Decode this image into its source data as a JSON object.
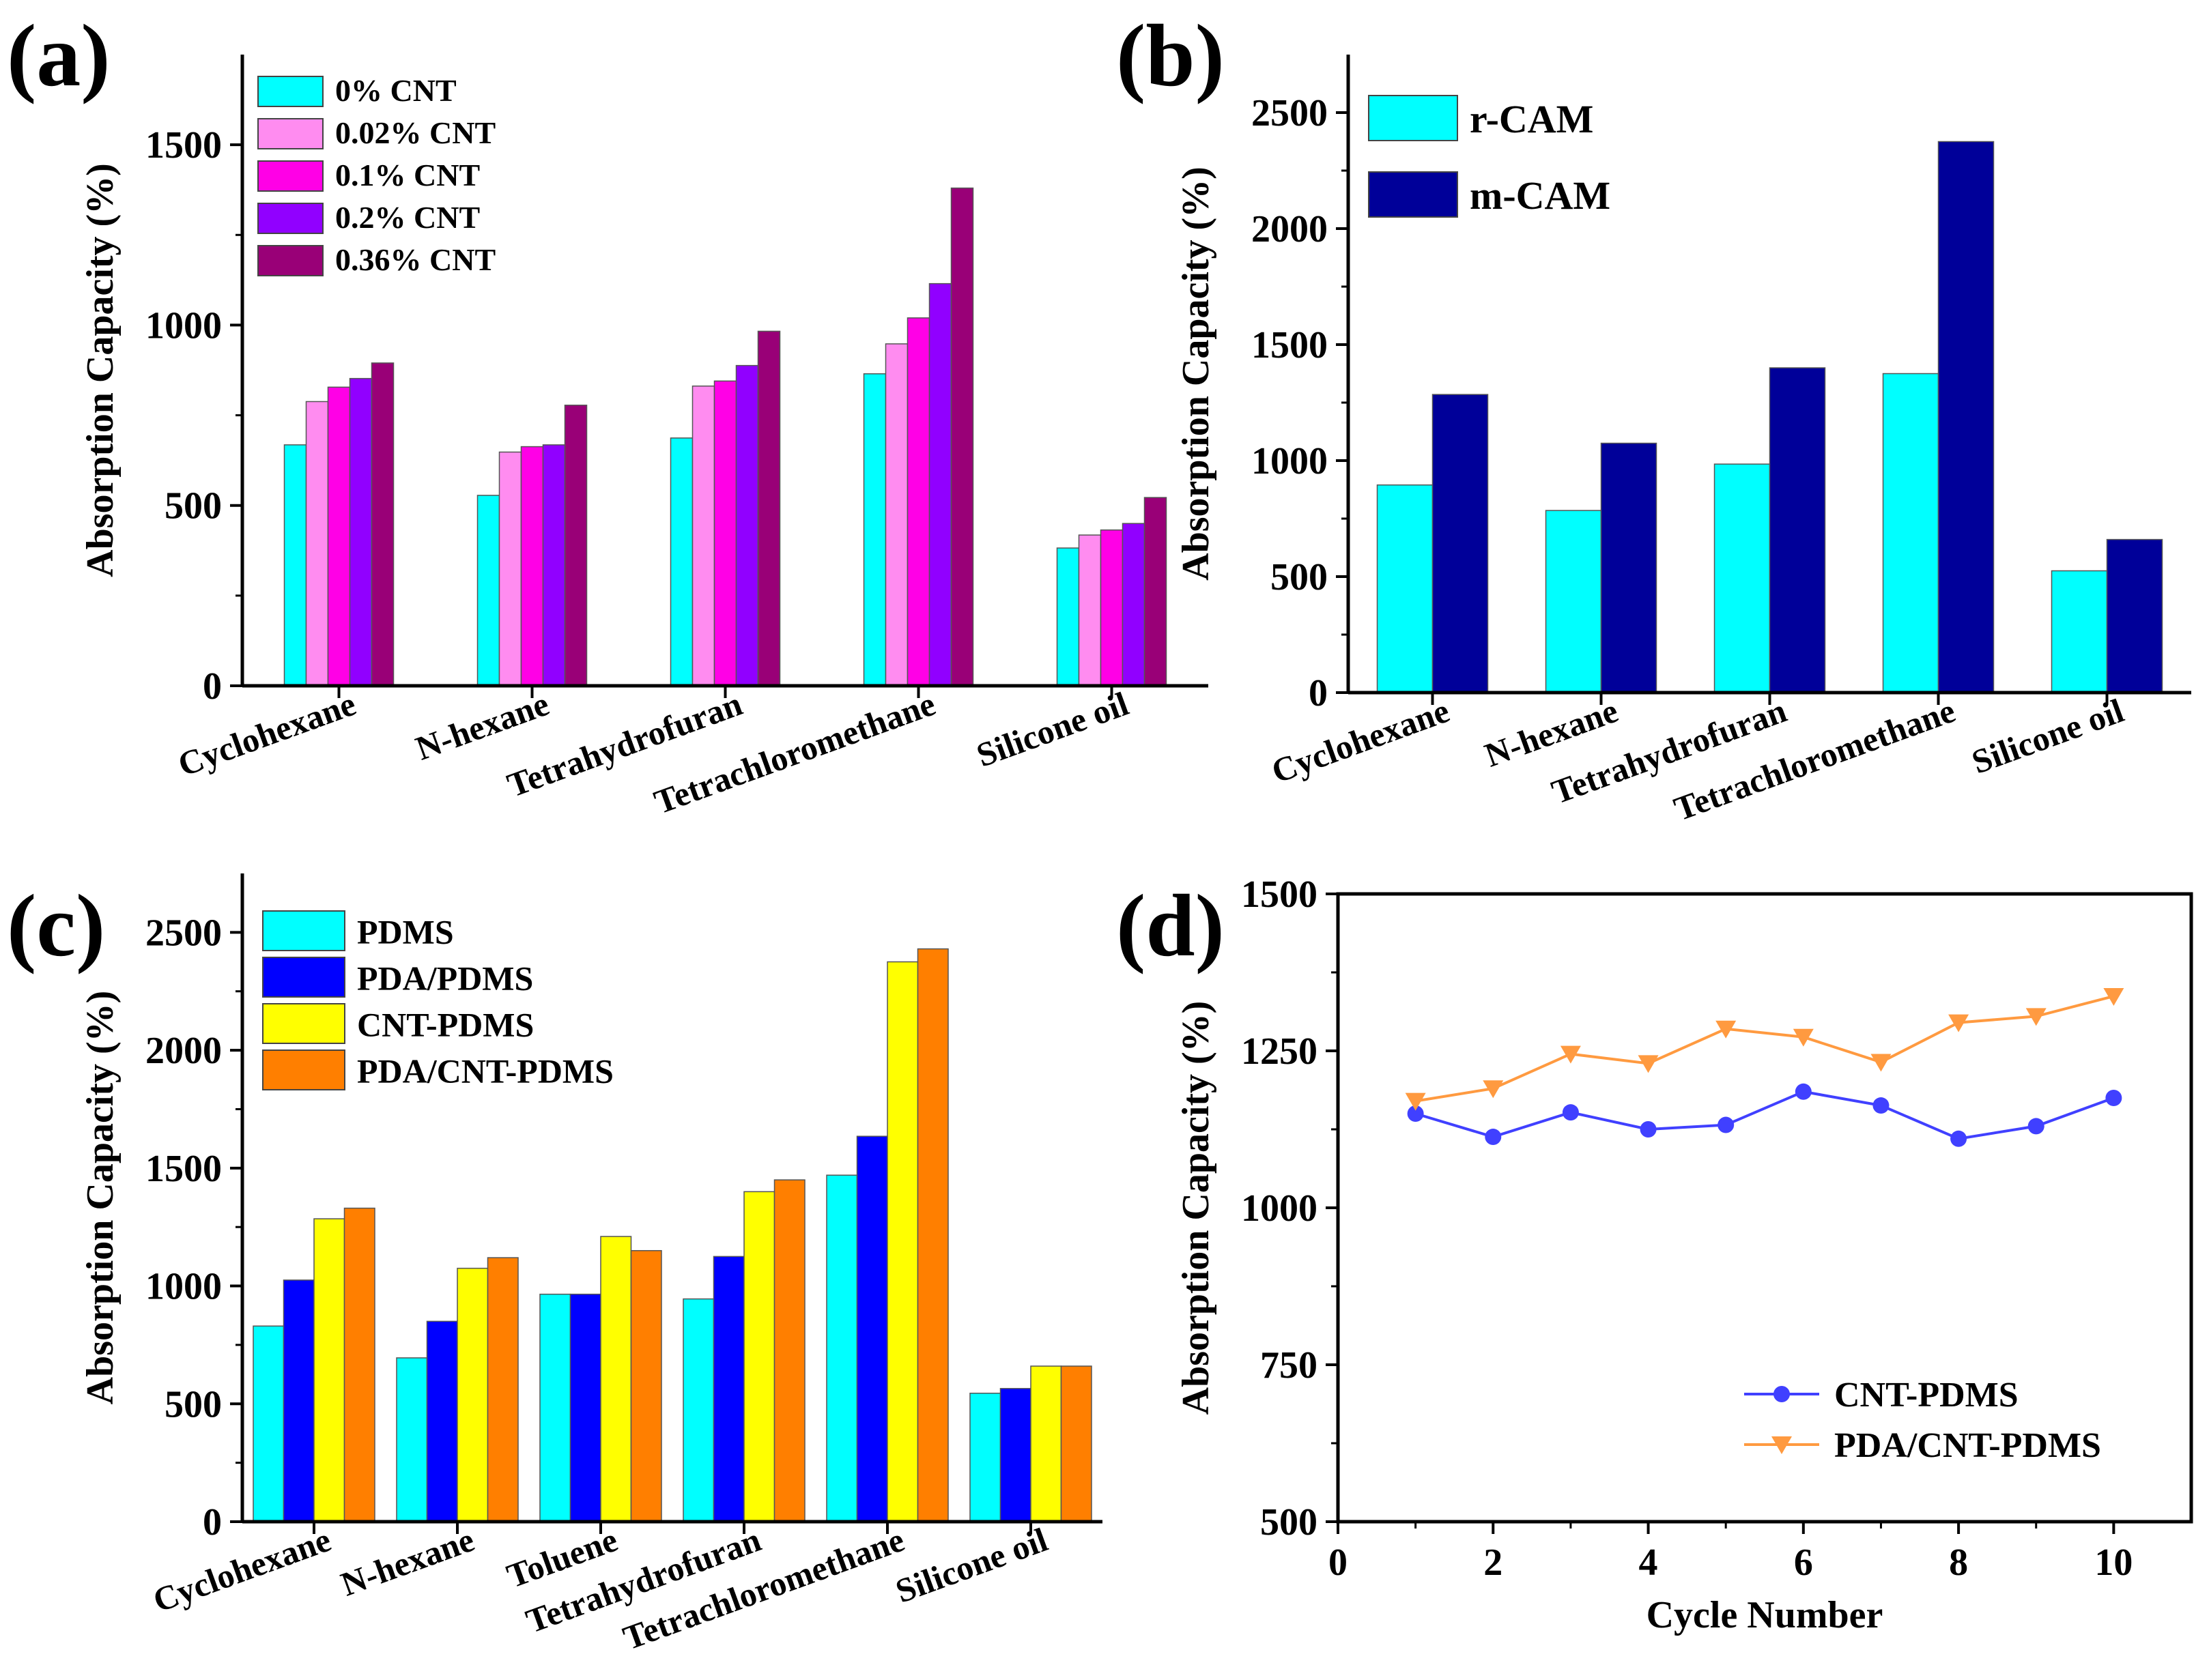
{
  "chart_data": [
    {
      "id": "a",
      "panel_label": "(a)",
      "type": "bar",
      "categories": [
        "Cyclohexane",
        "N-hexane",
        "Tetrahydrofuran",
        "Tetrachloromethane",
        "Silicone oil"
      ],
      "series": [
        {
          "name": "0% CNT",
          "color": "#00FFFF",
          "values": [
            668,
            528,
            687,
            865,
            382
          ]
        },
        {
          "name": "0.02% CNT",
          "color": "#FF8CF0",
          "values": [
            788,
            648,
            831,
            948,
            418
          ]
        },
        {
          "name": "0.1% CNT",
          "color": "#FF00E6",
          "values": [
            828,
            663,
            845,
            1020,
            432
          ]
        },
        {
          "name": "0.2% CNT",
          "color": "#9100FF",
          "values": [
            852,
            668,
            888,
            1115,
            450
          ]
        },
        {
          "name": "0.36% CNT",
          "color": "#990077",
          "values": [
            895,
            778,
            983,
            1380,
            522
          ]
        }
      ],
      "ylabel": "Absorption Capacity (%)",
      "xlabel": "",
      "ylim": [
        0,
        1750
      ],
      "yticks": [
        0,
        500,
        1000,
        1500
      ],
      "legend": "top-left"
    },
    {
      "id": "b",
      "panel_label": "(b)",
      "type": "bar",
      "categories": [
        "Cyclohexane",
        "N-hexane",
        "Tetrahydrofuran",
        "Tetrachloromethane",
        "Silicone oil"
      ],
      "series": [
        {
          "name": "r-CAM",
          "color": "#00FFFF",
          "values": [
            895,
            785,
            985,
            1375,
            525
          ]
        },
        {
          "name": "m-CAM",
          "color": "#000099",
          "values": [
            1285,
            1075,
            1400,
            2375,
            660
          ]
        }
      ],
      "ylabel": "Absorption Capacity (%)",
      "xlabel": "",
      "ylim": [
        0,
        2750
      ],
      "yticks": [
        0,
        500,
        1000,
        1500,
        2000,
        2500
      ],
      "legend": "top-left"
    },
    {
      "id": "c",
      "panel_label": "(c)",
      "type": "bar",
      "categories": [
        "Cyclohexane",
        "N-hexane",
        "Toluene",
        "Tetrahydrofuran",
        "Tetrachloromethane",
        "Silicone oil"
      ],
      "series": [
        {
          "name": "PDMS",
          "color": "#00FFFF",
          "values": [
            830,
            695,
            965,
            945,
            1470,
            545
          ]
        },
        {
          "name": "PDA/PDMS",
          "color": "#0000FF",
          "values": [
            1025,
            850,
            965,
            1125,
            1635,
            565
          ]
        },
        {
          "name": "CNT-PDMS",
          "color": "#FFFF00",
          "values": [
            1285,
            1075,
            1210,
            1400,
            2375,
            660
          ]
        },
        {
          "name": "PDA/CNT-PDMS",
          "color": "#FF7F00",
          "values": [
            1330,
            1120,
            1150,
            1450,
            2430,
            660
          ]
        }
      ],
      "ylabel": "Absorption Capacity (%)",
      "xlabel": "",
      "ylim": [
        0,
        2750
      ],
      "yticks": [
        0,
        500,
        1000,
        1500,
        2000,
        2500
      ],
      "legend": "top-left"
    },
    {
      "id": "d",
      "panel_label": "(d)",
      "type": "line",
      "x": [
        1,
        2,
        3,
        4,
        5,
        6,
        7,
        8,
        9,
        10
      ],
      "series": [
        {
          "name": "CNT-PDMS",
          "color": "#4040FF",
          "marker": "circle",
          "values": [
            1150,
            1113,
            1152,
            1125,
            1132,
            1185,
            1163,
            1110,
            1130,
            1175
          ]
        },
        {
          "name": "PDA/CNT-PDMS",
          "color": "#FF9A40",
          "marker": "triangle-down",
          "values": [
            1170,
            1190,
            1245,
            1230,
            1285,
            1272,
            1232,
            1295,
            1305,
            1337
          ]
        }
      ],
      "xlabel": "Cycle Number",
      "ylabel": "Absorption Capacity (%)",
      "xlim": [
        0,
        11
      ],
      "xticks": [
        0,
        2,
        4,
        6,
        8,
        10
      ],
      "ylim": [
        500,
        1500
      ],
      "yticks": [
        500,
        750,
        1000,
        1250,
        1500
      ],
      "legend": "bottom-right"
    }
  ]
}
